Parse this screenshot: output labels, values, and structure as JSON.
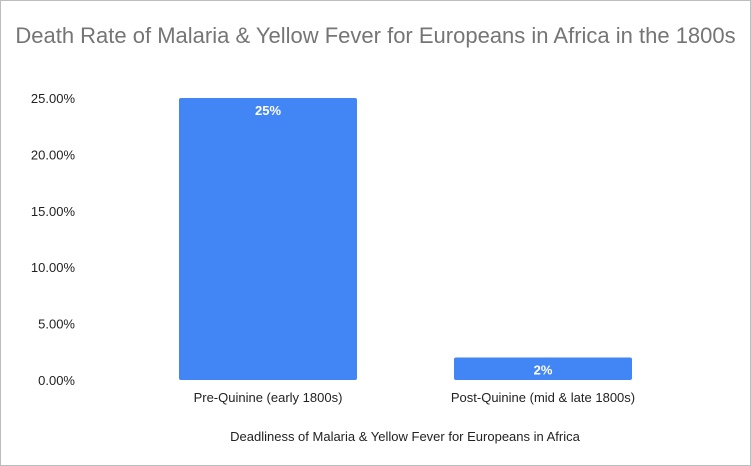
{
  "chart_data": {
    "type": "bar",
    "title": "Death Rate of Malaria & Yellow Fever for Europeans in Africa in the 1800s",
    "xlabel": "Deadliness of Malaria & Yellow Fever for Europeans in Africa",
    "ylabel": "",
    "categories": [
      "Pre-Quinine (early 1800s)",
      "Post-Quinine (mid & late 1800s)"
    ],
    "values": [
      25,
      2
    ],
    "data_labels": [
      "25%",
      "2%"
    ],
    "ylim": [
      0,
      25
    ],
    "yticks": [
      0,
      5,
      10,
      15,
      20,
      25
    ],
    "ytick_labels": [
      "0.00%",
      "5.00%",
      "10.00%",
      "15.00%",
      "20.00%",
      "25.00%"
    ],
    "grid": false,
    "legend": "none",
    "bar_color": "#4285f4"
  }
}
